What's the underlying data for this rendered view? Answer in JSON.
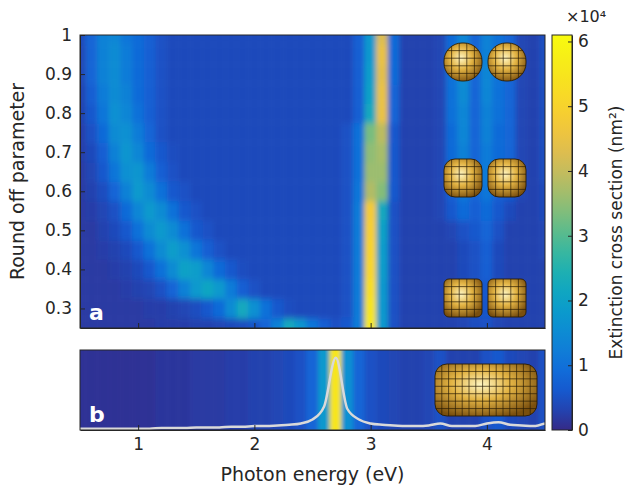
{
  "chart_data": [
    {
      "type": "heatmap",
      "panel": "a",
      "y_label": "Round off parameter",
      "x": [
        0.5,
        0.6,
        0.7,
        0.8,
        0.9,
        1,
        1.1,
        1.2,
        1.3,
        1.4,
        1.5,
        1.6,
        1.7,
        1.8,
        1.9,
        2,
        2.1,
        2.2,
        2.3,
        2.4,
        2.5,
        2.6,
        2.7,
        2.8,
        2.9,
        3,
        3.1,
        3.2,
        3.3,
        3.4,
        3.5,
        3.6,
        3.7,
        3.8,
        3.9,
        4,
        4.1,
        4.2,
        4.3,
        4.4,
        4.5
      ],
      "y": [
        0.25,
        0.3,
        0.35,
        0.4,
        0.45,
        0.5,
        0.55,
        0.6,
        0.65,
        0.7,
        0.75,
        0.8,
        0.85,
        0.9,
        0.95,
        1
      ],
      "cells": [
        [
          0.2,
          0.2,
          0.2,
          0.2,
          0.2,
          0.2,
          0.2,
          0.25,
          0.25,
          0.25,
          0.3,
          0.3,
          0.35,
          0.4,
          0.45,
          0.55,
          0.8,
          1.3,
          2.2,
          1.7,
          1.1,
          0.7,
          0.5,
          0.6,
          1.2,
          5.6,
          1.8,
          0.5,
          0.3,
          0.3,
          0.3,
          0.3,
          0.3,
          0.35,
          0.45,
          0.5,
          0.35,
          0.3,
          0.3,
          0.3,
          0.3
        ],
        [
          0.2,
          0.2,
          0.2,
          0.2,
          0.2,
          0.2,
          0.25,
          0.25,
          0.3,
          0.35,
          0.45,
          0.6,
          0.9,
          1.5,
          2.2,
          1.6,
          1.0,
          0.6,
          0.45,
          0.4,
          0.4,
          0.4,
          0.4,
          0.5,
          1.2,
          5.5,
          1.8,
          0.5,
          0.3,
          0.3,
          0.3,
          0.3,
          0.3,
          0.35,
          0.45,
          0.55,
          0.35,
          0.3,
          0.3,
          0.3,
          0.3
        ],
        [
          0.2,
          0.2,
          0.2,
          0.2,
          0.25,
          0.3,
          0.35,
          0.5,
          0.8,
          1.3,
          1.8,
          2.1,
          1.8,
          1.2,
          0.7,
          0.5,
          0.4,
          0.4,
          0.4,
          0.4,
          0.4,
          0.4,
          0.4,
          0.5,
          1.2,
          5.3,
          1.8,
          0.5,
          0.3,
          0.3,
          0.3,
          0.3,
          0.3,
          0.35,
          0.5,
          0.6,
          0.4,
          0.3,
          0.3,
          0.3,
          0.3
        ],
        [
          0.2,
          0.2,
          0.2,
          0.25,
          0.3,
          0.4,
          0.6,
          1.0,
          1.5,
          2.0,
          1.9,
          1.4,
          0.9,
          0.6,
          0.45,
          0.4,
          0.4,
          0.4,
          0.4,
          0.4,
          0.4,
          0.4,
          0.4,
          0.5,
          1.2,
          5.1,
          1.9,
          0.5,
          0.3,
          0.3,
          0.3,
          0.3,
          0.3,
          0.4,
          0.5,
          0.7,
          0.4,
          0.3,
          0.3,
          0.3,
          0.3
        ],
        [
          0.2,
          0.2,
          0.25,
          0.3,
          0.4,
          0.6,
          1.0,
          1.5,
          1.9,
          1.6,
          1.1,
          0.7,
          0.5,
          0.4,
          0.4,
          0.4,
          0.4,
          0.4,
          0.4,
          0.4,
          0.4,
          0.4,
          0.4,
          0.5,
          1.2,
          5.0,
          1.9,
          0.5,
          0.3,
          0.3,
          0.3,
          0.3,
          0.3,
          0.4,
          0.5,
          0.7,
          0.4,
          0.3,
          0.3,
          0.3,
          0.35
        ],
        [
          0.2,
          0.2,
          0.3,
          0.4,
          0.6,
          1.0,
          1.5,
          1.8,
          1.5,
          1.0,
          0.6,
          0.5,
          0.4,
          0.4,
          0.4,
          0.4,
          0.4,
          0.4,
          0.4,
          0.4,
          0.4,
          0.4,
          0.4,
          0.5,
          1.2,
          4.9,
          2.0,
          0.5,
          0.3,
          0.3,
          0.3,
          0.3,
          0.35,
          0.5,
          0.6,
          0.8,
          0.5,
          0.3,
          0.3,
          0.3,
          0.35
        ],
        [
          0.2,
          0.25,
          0.35,
          0.5,
          0.9,
          1.4,
          1.8,
          1.5,
          1.0,
          0.6,
          0.5,
          0.4,
          0.4,
          0.4,
          0.4,
          0.4,
          0.4,
          0.4,
          0.4,
          0.4,
          0.4,
          0.4,
          0.4,
          0.5,
          1.2,
          4.8,
          2.2,
          0.5,
          0.3,
          0.3,
          0.3,
          0.35,
          0.6,
          0.9,
          0.7,
          0.9,
          0.6,
          0.4,
          0.3,
          0.3,
          0.4
        ],
        [
          0.2,
          0.3,
          0.45,
          0.8,
          1.3,
          1.8,
          1.5,
          1.0,
          0.6,
          0.5,
          0.4,
          0.4,
          0.4,
          0.4,
          0.4,
          0.4,
          0.4,
          0.4,
          0.4,
          0.4,
          0.4,
          0.4,
          0.4,
          0.5,
          1.1,
          3.8,
          3.4,
          0.6,
          0.3,
          0.3,
          0.3,
          0.35,
          0.7,
          1.1,
          0.8,
          1.1,
          0.7,
          0.6,
          0.35,
          0.3,
          0.4
        ],
        [
          0.2,
          0.35,
          0.6,
          1.1,
          1.6,
          1.7,
          1.2,
          0.7,
          0.5,
          0.4,
          0.4,
          0.4,
          0.4,
          0.4,
          0.4,
          0.4,
          0.4,
          0.4,
          0.4,
          0.4,
          0.4,
          0.4,
          0.4,
          0.5,
          1.0,
          3.6,
          3.6,
          0.6,
          0.3,
          0.3,
          0.3,
          0.35,
          0.8,
          1.2,
          0.8,
          1.2,
          0.8,
          0.7,
          0.35,
          0.3,
          0.45
        ],
        [
          0.25,
          0.4,
          0.7,
          1.3,
          1.7,
          1.4,
          0.9,
          0.6,
          0.45,
          0.4,
          0.4,
          0.4,
          0.4,
          0.4,
          0.4,
          0.4,
          0.4,
          0.4,
          0.4,
          0.4,
          0.4,
          0.4,
          0.4,
          0.5,
          1.0,
          3.5,
          3.7,
          0.6,
          0.3,
          0.3,
          0.3,
          0.35,
          0.9,
          1.3,
          0.8,
          1.2,
          0.9,
          0.8,
          0.35,
          0.3,
          0.45
        ],
        [
          0.25,
          0.5,
          0.9,
          1.5,
          1.6,
          1.2,
          0.8,
          0.5,
          0.4,
          0.4,
          0.4,
          0.4,
          0.4,
          0.4,
          0.4,
          0.4,
          0.4,
          0.4,
          0.4,
          0.4,
          0.4,
          0.4,
          0.4,
          0.5,
          1.0,
          3.3,
          3.9,
          0.6,
          0.3,
          0.3,
          0.3,
          0.35,
          0.9,
          1.4,
          0.8,
          1.3,
          0.9,
          0.8,
          0.35,
          0.3,
          0.45
        ],
        [
          0.3,
          0.6,
          1.1,
          1.6,
          1.4,
          1.0,
          0.7,
          0.5,
          0.4,
          0.4,
          0.4,
          0.4,
          0.4,
          0.4,
          0.4,
          0.4,
          0.4,
          0.4,
          0.4,
          0.4,
          0.4,
          0.4,
          0.4,
          0.4,
          0.7,
          2.2,
          4.5,
          0.8,
          0.3,
          0.3,
          0.3,
          0.35,
          1.0,
          1.4,
          0.8,
          1.3,
          1.0,
          0.8,
          0.35,
          0.3,
          0.45
        ],
        [
          0.3,
          0.7,
          1.2,
          1.5,
          1.3,
          0.9,
          0.7,
          0.5,
          0.4,
          0.4,
          0.4,
          0.4,
          0.4,
          0.4,
          0.4,
          0.4,
          0.4,
          0.4,
          0.4,
          0.4,
          0.4,
          0.4,
          0.4,
          0.4,
          0.7,
          2.0,
          4.5,
          0.8,
          0.3,
          0.3,
          0.3,
          0.35,
          1.0,
          1.5,
          0.8,
          1.4,
          1.0,
          0.8,
          0.35,
          0.3,
          0.45
        ],
        [
          0.35,
          0.8,
          1.3,
          1.5,
          1.2,
          0.9,
          0.7,
          0.5,
          0.4,
          0.4,
          0.4,
          0.4,
          0.4,
          0.4,
          0.4,
          0.4,
          0.4,
          0.4,
          0.4,
          0.4,
          0.4,
          0.4,
          0.4,
          0.4,
          0.7,
          1.9,
          4.4,
          0.9,
          0.3,
          0.3,
          0.3,
          0.35,
          1.0,
          1.5,
          0.8,
          1.4,
          1.0,
          0.8,
          0.35,
          0.3,
          0.45
        ],
        [
          0.35,
          0.8,
          1.3,
          1.5,
          1.2,
          0.9,
          0.7,
          0.5,
          0.4,
          0.4,
          0.4,
          0.4,
          0.4,
          0.4,
          0.4,
          0.4,
          0.4,
          0.4,
          0.4,
          0.4,
          0.4,
          0.4,
          0.4,
          0.4,
          0.7,
          1.8,
          4.5,
          0.9,
          0.3,
          0.3,
          0.3,
          0.35,
          0.9,
          1.4,
          0.8,
          1.3,
          1.0,
          0.8,
          0.35,
          0.3,
          0.45
        ],
        [
          0.4,
          0.8,
          1.3,
          1.4,
          1.1,
          0.9,
          0.7,
          0.5,
          0.4,
          0.4,
          0.4,
          0.4,
          0.4,
          0.4,
          0.4,
          0.4,
          0.4,
          0.4,
          0.4,
          0.4,
          0.4,
          0.4,
          0.4,
          0.4,
          0.7,
          1.8,
          4.3,
          0.9,
          0.3,
          0.3,
          0.3,
          0.35,
          0.9,
          1.4,
          0.8,
          1.3,
          1.0,
          0.8,
          0.35,
          0.3,
          0.45
        ]
      ],
      "xlim": [
        0.5,
        4.5
      ],
      "xticks": [
        1,
        2,
        3,
        4
      ],
      "ylim": [
        0.25,
        1
      ],
      "yticks": [
        0.3,
        0.4,
        0.5,
        0.6,
        0.7,
        0.8,
        0.9,
        1
      ],
      "tick_labels": "y",
      "colorbar": {
        "label": "Extinction cross section (nm²)",
        "multiplier": "×10⁴",
        "range": [
          0,
          6.1
        ],
        "ticks": [
          0,
          1,
          2,
          3,
          4,
          5,
          6
        ]
      }
    },
    {
      "type": "heatmap",
      "panel": "b",
      "x_label": "Photon energy (eV)",
      "x": [
        0.5,
        0.6,
        0.7,
        0.8,
        0.9,
        1,
        1.1,
        1.2,
        1.3,
        1.4,
        1.5,
        1.6,
        1.7,
        1.8,
        1.9,
        2,
        2.1,
        2.2,
        2.3,
        2.4,
        2.5,
        2.6,
        2.7,
        2.8,
        2.9,
        3,
        3.1,
        3.2,
        3.3,
        3.4,
        3.5,
        3.6,
        3.7,
        3.8,
        3.9,
        4,
        4.1,
        4.2,
        4.3,
        4.4,
        4.5
      ],
      "values": [
        0.1,
        0.1,
        0.1,
        0.1,
        0.1,
        0.1,
        0.1,
        0.15,
        0.15,
        0.15,
        0.2,
        0.2,
        0.2,
        0.25,
        0.25,
        0.3,
        0.3,
        0.35,
        0.4,
        0.5,
        0.8,
        1.8,
        5.5,
        1.6,
        0.8,
        0.5,
        0.4,
        0.35,
        0.3,
        0.3,
        0.35,
        0.5,
        0.3,
        0.3,
        0.3,
        0.5,
        0.6,
        0.4,
        0.35,
        0.3,
        0.5
      ],
      "xlim": [
        0.5,
        4.5
      ],
      "xticks": [
        1,
        2,
        3,
        4
      ],
      "ylim": [
        0,
        6.1
      ],
      "tick_labels": "x",
      "color": "#d9d9d9"
    }
  ]
}
